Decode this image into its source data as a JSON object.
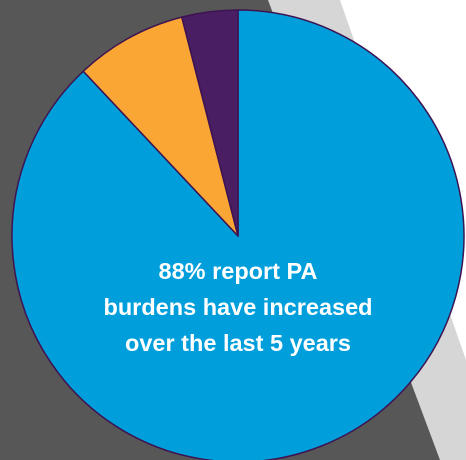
{
  "chart_data": {
    "type": "pie",
    "title": "",
    "start_angle": "top, clockwise",
    "slices": [
      {
        "label": "",
        "value": 88,
        "color": "#009fdc"
      },
      {
        "label": "",
        "value": 8,
        "color": "#faa634"
      },
      {
        "label": "",
        "value": 4,
        "color": "#4a1e62"
      }
    ],
    "annotation": {
      "lines": [
        "88% report PA",
        "burdens have increased",
        "over the last 5 years"
      ]
    }
  },
  "colors": {
    "backdrop": "#575757",
    "backdrop_edge": "#d6d6d6",
    "slice_border": "#3d1352"
  }
}
